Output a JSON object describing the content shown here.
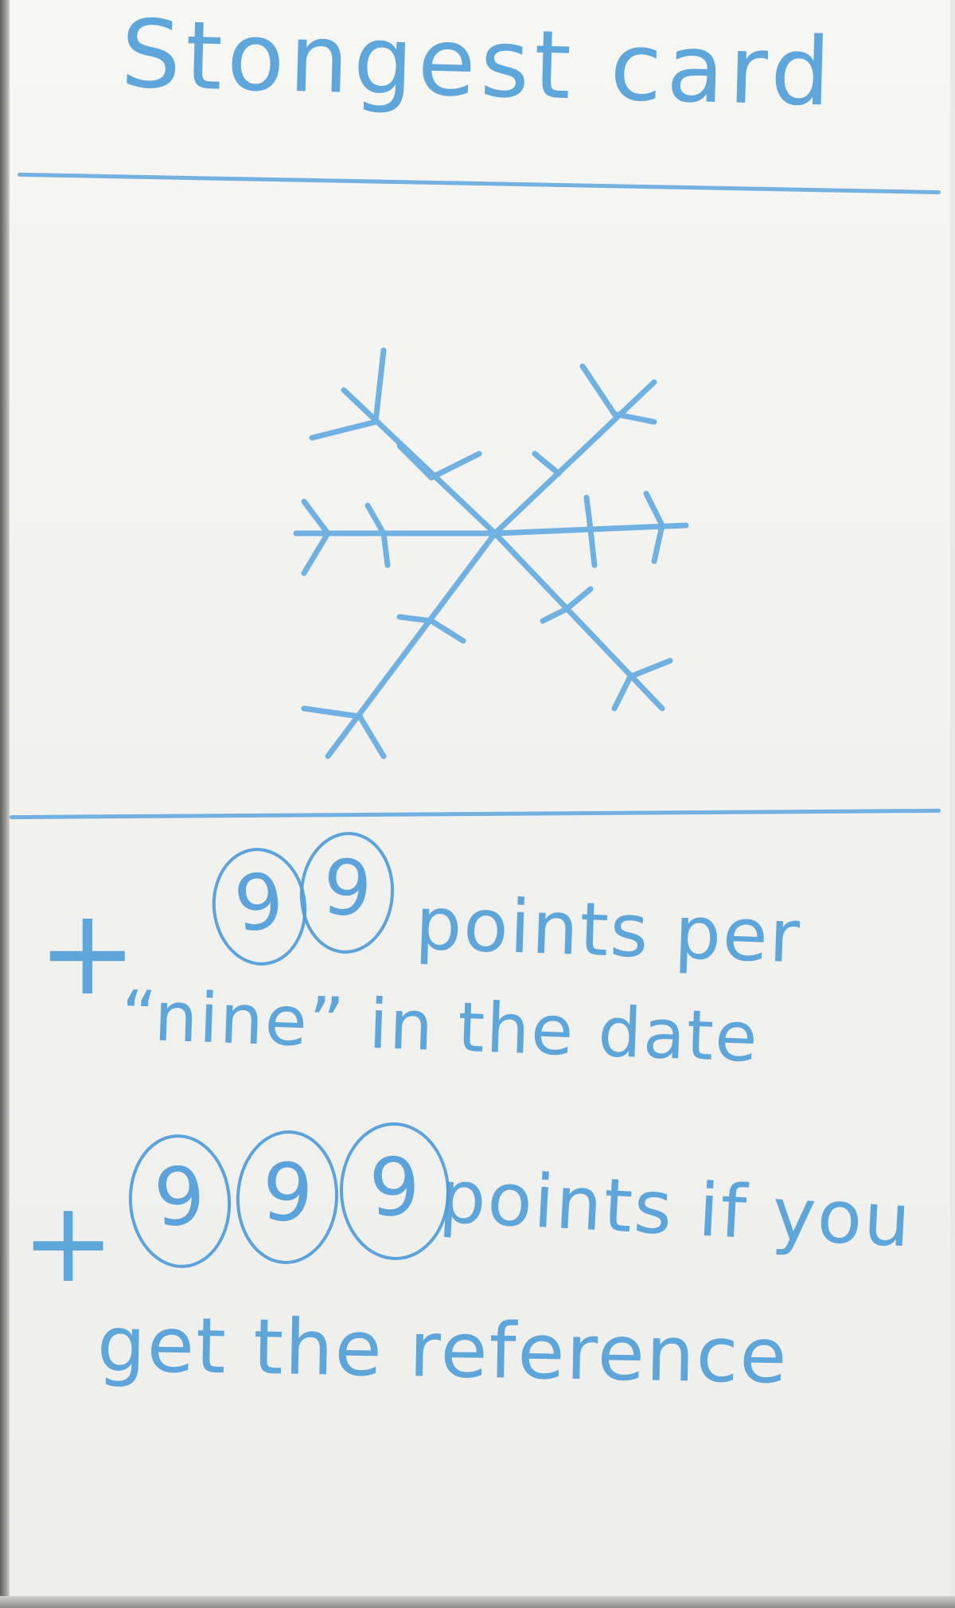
{
  "card": {
    "title": "Stongest card",
    "line1_plus": "+",
    "line1_digit_a": "9",
    "line1_digit_b": "9",
    "line1_text": "points per",
    "line2_text": "“nine” in the date",
    "line3_plus": "+",
    "line3_digit_a": "9",
    "line3_digit_b": "9",
    "line3_digit_c": "9",
    "line3_text": "points if you",
    "line4_text": "get the reference"
  },
  "colors": {
    "pencil_blue": "#4b9bd8",
    "paper": "#f3f3f1"
  },
  "icons": {
    "illustration": "snowflake-icon"
  }
}
